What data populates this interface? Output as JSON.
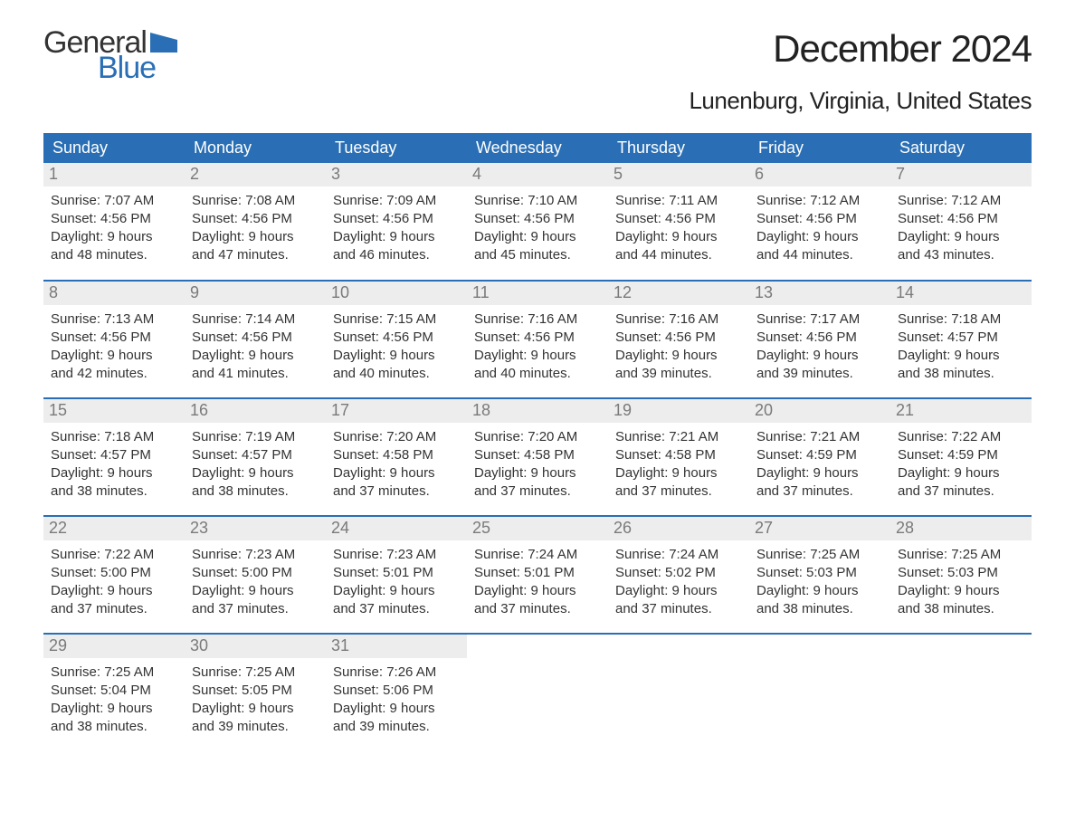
{
  "brand": {
    "word1": "General",
    "word2": "Blue",
    "word1_color": "#333333",
    "word2_color": "#2a6fb5",
    "flag_color": "#2a6fb5"
  },
  "title": "December 2024",
  "location": "Lunenburg, Virginia, United States",
  "colors": {
    "header_bg": "#2a6fb5",
    "header_text": "#ffffff",
    "daynum_bg": "#ededed",
    "daynum_text": "#7a7a7a",
    "body_text": "#333333",
    "week_divider": "#2a6fb5",
    "page_bg": "#ffffff"
  },
  "typography": {
    "title_fontsize": 42,
    "location_fontsize": 26,
    "dayheader_fontsize": 18,
    "daynum_fontsize": 18,
    "body_fontsize": 15,
    "font_family": "Arial"
  },
  "day_headers": [
    "Sunday",
    "Monday",
    "Tuesday",
    "Wednesday",
    "Thursday",
    "Friday",
    "Saturday"
  ],
  "weeks": [
    [
      {
        "n": "1",
        "sr": "Sunrise: 7:07 AM",
        "ss": "Sunset: 4:56 PM",
        "dl": "Daylight: 9 hours and 48 minutes."
      },
      {
        "n": "2",
        "sr": "Sunrise: 7:08 AM",
        "ss": "Sunset: 4:56 PM",
        "dl": "Daylight: 9 hours and 47 minutes."
      },
      {
        "n": "3",
        "sr": "Sunrise: 7:09 AM",
        "ss": "Sunset: 4:56 PM",
        "dl": "Daylight: 9 hours and 46 minutes."
      },
      {
        "n": "4",
        "sr": "Sunrise: 7:10 AM",
        "ss": "Sunset: 4:56 PM",
        "dl": "Daylight: 9 hours and 45 minutes."
      },
      {
        "n": "5",
        "sr": "Sunrise: 7:11 AM",
        "ss": "Sunset: 4:56 PM",
        "dl": "Daylight: 9 hours and 44 minutes."
      },
      {
        "n": "6",
        "sr": "Sunrise: 7:12 AM",
        "ss": "Sunset: 4:56 PM",
        "dl": "Daylight: 9 hours and 44 minutes."
      },
      {
        "n": "7",
        "sr": "Sunrise: 7:12 AM",
        "ss": "Sunset: 4:56 PM",
        "dl": "Daylight: 9 hours and 43 minutes."
      }
    ],
    [
      {
        "n": "8",
        "sr": "Sunrise: 7:13 AM",
        "ss": "Sunset: 4:56 PM",
        "dl": "Daylight: 9 hours and 42 minutes."
      },
      {
        "n": "9",
        "sr": "Sunrise: 7:14 AM",
        "ss": "Sunset: 4:56 PM",
        "dl": "Daylight: 9 hours and 41 minutes."
      },
      {
        "n": "10",
        "sr": "Sunrise: 7:15 AM",
        "ss": "Sunset: 4:56 PM",
        "dl": "Daylight: 9 hours and 40 minutes."
      },
      {
        "n": "11",
        "sr": "Sunrise: 7:16 AM",
        "ss": "Sunset: 4:56 PM",
        "dl": "Daylight: 9 hours and 40 minutes."
      },
      {
        "n": "12",
        "sr": "Sunrise: 7:16 AM",
        "ss": "Sunset: 4:56 PM",
        "dl": "Daylight: 9 hours and 39 minutes."
      },
      {
        "n": "13",
        "sr": "Sunrise: 7:17 AM",
        "ss": "Sunset: 4:56 PM",
        "dl": "Daylight: 9 hours and 39 minutes."
      },
      {
        "n": "14",
        "sr": "Sunrise: 7:18 AM",
        "ss": "Sunset: 4:57 PM",
        "dl": "Daylight: 9 hours and 38 minutes."
      }
    ],
    [
      {
        "n": "15",
        "sr": "Sunrise: 7:18 AM",
        "ss": "Sunset: 4:57 PM",
        "dl": "Daylight: 9 hours and 38 minutes."
      },
      {
        "n": "16",
        "sr": "Sunrise: 7:19 AM",
        "ss": "Sunset: 4:57 PM",
        "dl": "Daylight: 9 hours and 38 minutes."
      },
      {
        "n": "17",
        "sr": "Sunrise: 7:20 AM",
        "ss": "Sunset: 4:58 PM",
        "dl": "Daylight: 9 hours and 37 minutes."
      },
      {
        "n": "18",
        "sr": "Sunrise: 7:20 AM",
        "ss": "Sunset: 4:58 PM",
        "dl": "Daylight: 9 hours and 37 minutes."
      },
      {
        "n": "19",
        "sr": "Sunrise: 7:21 AM",
        "ss": "Sunset: 4:58 PM",
        "dl": "Daylight: 9 hours and 37 minutes."
      },
      {
        "n": "20",
        "sr": "Sunrise: 7:21 AM",
        "ss": "Sunset: 4:59 PM",
        "dl": "Daylight: 9 hours and 37 minutes."
      },
      {
        "n": "21",
        "sr": "Sunrise: 7:22 AM",
        "ss": "Sunset: 4:59 PM",
        "dl": "Daylight: 9 hours and 37 minutes."
      }
    ],
    [
      {
        "n": "22",
        "sr": "Sunrise: 7:22 AM",
        "ss": "Sunset: 5:00 PM",
        "dl": "Daylight: 9 hours and 37 minutes."
      },
      {
        "n": "23",
        "sr": "Sunrise: 7:23 AM",
        "ss": "Sunset: 5:00 PM",
        "dl": "Daylight: 9 hours and 37 minutes."
      },
      {
        "n": "24",
        "sr": "Sunrise: 7:23 AM",
        "ss": "Sunset: 5:01 PM",
        "dl": "Daylight: 9 hours and 37 minutes."
      },
      {
        "n": "25",
        "sr": "Sunrise: 7:24 AM",
        "ss": "Sunset: 5:01 PM",
        "dl": "Daylight: 9 hours and 37 minutes."
      },
      {
        "n": "26",
        "sr": "Sunrise: 7:24 AM",
        "ss": "Sunset: 5:02 PM",
        "dl": "Daylight: 9 hours and 37 minutes."
      },
      {
        "n": "27",
        "sr": "Sunrise: 7:25 AM",
        "ss": "Sunset: 5:03 PM",
        "dl": "Daylight: 9 hours and 38 minutes."
      },
      {
        "n": "28",
        "sr": "Sunrise: 7:25 AM",
        "ss": "Sunset: 5:03 PM",
        "dl": "Daylight: 9 hours and 38 minutes."
      }
    ],
    [
      {
        "n": "29",
        "sr": "Sunrise: 7:25 AM",
        "ss": "Sunset: 5:04 PM",
        "dl": "Daylight: 9 hours and 38 minutes."
      },
      {
        "n": "30",
        "sr": "Sunrise: 7:25 AM",
        "ss": "Sunset: 5:05 PM",
        "dl": "Daylight: 9 hours and 39 minutes."
      },
      {
        "n": "31",
        "sr": "Sunrise: 7:26 AM",
        "ss": "Sunset: 5:06 PM",
        "dl": "Daylight: 9 hours and 39 minutes."
      },
      {
        "empty": true
      },
      {
        "empty": true
      },
      {
        "empty": true
      },
      {
        "empty": true
      }
    ]
  ]
}
